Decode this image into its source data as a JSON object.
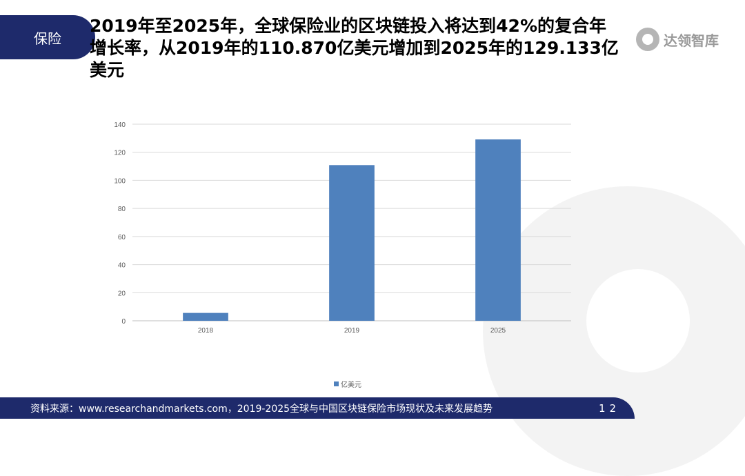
{
  "header": {
    "tag": "保险",
    "title": "2019年至2025年，全球保险业的区块链投入将达到42%的复合年增长率，从2019年的110.870亿美元增加到2025年的129.133亿美元",
    "logo_text": "达领智库"
  },
  "chart_data": {
    "type": "bar",
    "categories": [
      "2018",
      "2019",
      "2025"
    ],
    "series": [
      {
        "name": "亿美元",
        "values": [
          5.6,
          110.87,
          129.133
        ],
        "color": "#4f81bd"
      }
    ],
    "yticks": [
      0,
      20,
      40,
      60,
      80,
      100,
      120,
      140
    ],
    "ylim": [
      0,
      140
    ],
    "grid": true,
    "legend": "bottom"
  },
  "footer": {
    "source": "资料来源：www.researchandmarkets.com，2019-2025全球与中国区块链保险市场现状及未来发展趋势",
    "page": "12"
  }
}
